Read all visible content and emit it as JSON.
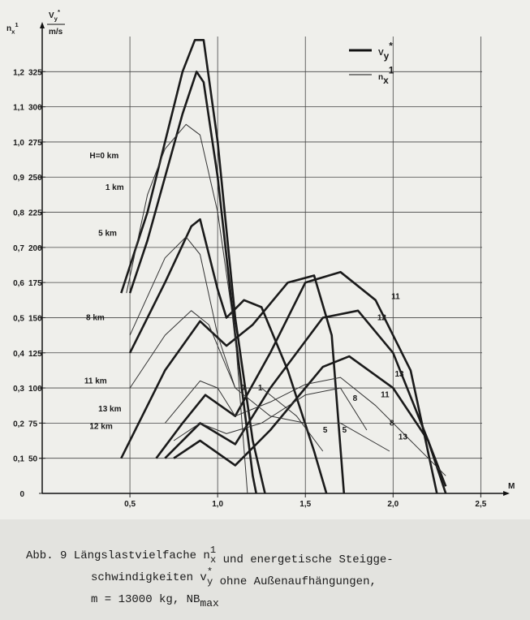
{
  "chart_data": {
    "type": "line",
    "y_title": {
      "symbol": "n",
      "sub": "x",
      "sup": "1"
    },
    "y2_title": {
      "symbol": "V",
      "sub": "y",
      "sup": "*",
      "unit": "m/s"
    },
    "x_title": "M",
    "xlim": [
      0,
      2.6
    ],
    "xticks": [
      {
        "value": 0.5,
        "label": "0,5"
      },
      {
        "value": 1.0,
        "label": "1,0"
      },
      {
        "value": 1.5,
        "label": "1,5"
      },
      {
        "value": 2.0,
        "label": "2,0"
      },
      {
        "value": 2.5,
        "label": "2,5"
      }
    ],
    "ylim": [
      0,
      1.3
    ],
    "yticks": [
      0,
      {
        "value": 0.1,
        "label": "0,1"
      },
      {
        "value": 0.2,
        "label": "0,2"
      },
      {
        "value": 0.3,
        "label": "0,3"
      },
      {
        "value": 0.4,
        "label": "0,4"
      },
      {
        "value": 0.5,
        "label": "0,5"
      },
      {
        "value": 0.6,
        "label": "0,6"
      },
      {
        "value": 0.7,
        "label": "0,7"
      },
      {
        "value": 0.8,
        "label": "0,8"
      },
      {
        "value": 0.9,
        "label": "0,9"
      },
      {
        "value": 1.0,
        "label": "1,0"
      },
      {
        "value": 1.1,
        "label": "1,1"
      },
      {
        "value": 1.2,
        "label": "1,2"
      }
    ],
    "y2lim": [
      25,
      350
    ],
    "y2ticks": [
      50,
      75,
      100,
      125,
      150,
      175,
      200,
      225,
      250,
      275,
      300,
      325
    ],
    "grid": true,
    "legend": [
      {
        "weight": "thick",
        "symbol": "V",
        "sub": "y",
        "sup": "*"
      },
      {
        "weight": "thin",
        "symbol": "n",
        "sub": "x",
        "sup": "1"
      }
    ],
    "series": [
      {
        "weight": "thick",
        "axis": "y2",
        "color": "#1a1a1a",
        "x": [
          0.45,
          0.6,
          0.7,
          0.8,
          0.87,
          0.92,
          1.0,
          1.1,
          1.2,
          1.27
        ],
        "values": [
          167.5,
          225,
          275,
          325,
          347.5,
          347.5,
          275,
          150,
          62.5,
          25
        ]
      },
      {
        "weight": "thick",
        "axis": "y2",
        "color": "#1a1a1a",
        "x": [
          0.5,
          0.6,
          0.7,
          0.8,
          0.88,
          0.92,
          1.0,
          1.1,
          1.2,
          1.22
        ],
        "values": [
          167.5,
          205,
          250,
          295,
          325,
          317.5,
          250,
          137.5,
          37.5,
          25
        ]
      },
      {
        "weight": "thick",
        "axis": "y2",
        "color": "#1a1a1a",
        "x": [
          0.5,
          0.7,
          0.85,
          0.9,
          1.0,
          1.05,
          1.15,
          1.25,
          1.4,
          1.55,
          1.62
        ],
        "values": [
          125,
          175,
          215,
          220,
          170,
          150,
          162.5,
          157.5,
          112.5,
          55,
          25
        ]
      },
      {
        "weight": "thick",
        "axis": "y2",
        "color": "#1a1a1a",
        "x": [
          0.45,
          0.7,
          0.9,
          1.05,
          1.2,
          1.4,
          1.55,
          1.65,
          1.72
        ],
        "values": [
          50,
          112.5,
          147.5,
          130,
          145,
          175,
          180,
          137.5,
          25
        ]
      },
      {
        "weight": "thick",
        "axis": "y2",
        "color": "#1a1a1a",
        "x": [
          0.65,
          0.8,
          0.93,
          1.1,
          1.3,
          1.5,
          1.7,
          1.9,
          2.1,
          2.25
        ],
        "values": [
          50,
          75,
          95,
          80,
          125,
          175,
          182.5,
          162.5,
          112.5,
          25
        ]
      },
      {
        "weight": "thick",
        "axis": "y2",
        "color": "#1a1a1a",
        "x": [
          0.7,
          0.9,
          1.1,
          1.3,
          1.6,
          1.8,
          2.0,
          2.2,
          2.3
        ],
        "values": [
          50,
          75,
          60,
          100,
          150,
          155,
          125,
          62.5,
          25
        ]
      },
      {
        "weight": "thick",
        "axis": "y2",
        "color": "#1a1a1a",
        "x": [
          0.75,
          0.9,
          1.1,
          1.3,
          1.6,
          1.75,
          2.0,
          2.2,
          2.3
        ],
        "values": [
          50,
          62.5,
          45,
          70,
          115,
          122.5,
          100,
          62.5,
          30
        ]
      },
      {
        "weight": "thin",
        "color": "#333333",
        "x": [
          0.48,
          0.6,
          0.7,
          0.82,
          0.9,
          1.0,
          1.1,
          1.17
        ],
        "values": [
          0.57,
          0.85,
          0.98,
          1.05,
          1.02,
          0.8,
          0.45,
          0.0
        ]
      },
      {
        "weight": "thin",
        "color": "#333333",
        "x": [
          0.5,
          0.7,
          0.82,
          0.9,
          1.0,
          1.1,
          1.25,
          1.45,
          1.6
        ],
        "values": [
          0.45,
          0.67,
          0.73,
          0.68,
          0.45,
          0.3,
          0.3,
          0.22,
          0.12
        ]
      },
      {
        "weight": "thin",
        "color": "#333333",
        "x": [
          0.5,
          0.7,
          0.85,
          0.95,
          1.1,
          1.3,
          1.5,
          1.7,
          1.98
        ],
        "values": [
          0.3,
          0.45,
          0.52,
          0.48,
          0.3,
          0.22,
          0.2,
          0.2,
          0.12
        ]
      },
      {
        "weight": "thin",
        "color": "#333333",
        "x": [
          0.7,
          0.9,
          1.0,
          1.1,
          1.3,
          1.5,
          1.7,
          1.9,
          2.1,
          2.3
        ],
        "values": [
          0.2,
          0.32,
          0.3,
          0.22,
          0.26,
          0.31,
          0.33,
          0.25,
          0.15,
          0.05
        ]
      },
      {
        "weight": "thin",
        "color": "#333333",
        "x": [
          0.75,
          0.9,
          1.05,
          1.25,
          1.5,
          1.7,
          1.85
        ],
        "values": [
          0.15,
          0.2,
          0.17,
          0.2,
          0.28,
          0.3,
          0.18
        ]
      }
    ],
    "annotations": [
      {
        "text": "H=0 km",
        "x": 0.27,
        "y": 0.96
      },
      {
        "text": "1 km",
        "x": 0.36,
        "y": 0.87
      },
      {
        "text": "5 km",
        "x": 0.32,
        "y": 0.74
      },
      {
        "text": "8 km",
        "x": 0.25,
        "y": 0.5
      },
      {
        "text": "11 km",
        "x": 0.24,
        "y": 0.32
      },
      {
        "text": "13 km",
        "x": 0.32,
        "y": 0.24
      },
      {
        "text": "12 km",
        "x": 0.27,
        "y": 0.19
      },
      {
        "text": "11",
        "x": 1.99,
        "y": 0.56
      },
      {
        "text": "12",
        "x": 1.91,
        "y": 0.5
      },
      {
        "text": "13",
        "x": 2.01,
        "y": 0.34
      },
      {
        "text": "11",
        "x": 1.93,
        "y": 0.28
      },
      {
        "text": "8",
        "x": 1.77,
        "y": 0.27
      },
      {
        "text": "8",
        "x": 1.98,
        "y": 0.2
      },
      {
        "text": "13",
        "x": 2.03,
        "y": 0.16
      },
      {
        "text": "5",
        "x": 1.6,
        "y": 0.18
      },
      {
        "text": "5",
        "x": 1.71,
        "y": 0.18
      },
      {
        "text": "0",
        "x": 1.13,
        "y": 0.3
      },
      {
        "text": "1",
        "x": 1.23,
        "y": 0.3
      }
    ]
  },
  "caption": [
    [
      "Abb. 9  Längslastvielfache n",
      {
        "sub": "x",
        "sup": "1"
      },
      " und energetische Steigge-"
    ],
    [
      "schwindigkeiten v",
      {
        "sub": "y",
        "sup": "*"
      },
      " ohne Außenaufhängungen,"
    ],
    [
      "m = 13000 kg, NB",
      {
        "sub": "max"
      }
    ]
  ]
}
